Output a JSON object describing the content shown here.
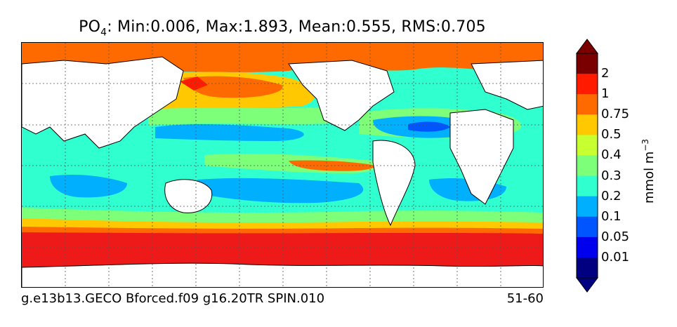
{
  "title": {
    "variable_base": "PO",
    "variable_sub": "4",
    "stats": ": Min:0.006, Max:1.893, Mean:0.555, RMS:0.705"
  },
  "footer": {
    "run_name": "g.e13b13.GECO Bforced.f09 g16.20TR SPIN.010",
    "years": "51-60"
  },
  "colorbar": {
    "unit_base": "mmol m",
    "unit_exp": "−3",
    "levels": [
      "2",
      "1",
      "0.75",
      "0.5",
      "0.4",
      "0.3",
      "0.2",
      "0.1",
      "0.05",
      "0.01"
    ],
    "colors": [
      "#7a0000",
      "#ff1a00",
      "#ff6a00",
      "#ffc800",
      "#c8ff30",
      "#7dff7a",
      "#30ffd0",
      "#00b0ff",
      "#0055ff",
      "#0000ee",
      "#000080"
    ]
  },
  "map": {
    "ocean_colors": {
      "southern_ocean": "#ee1a1a",
      "arctic": "#ff6a00",
      "north_pacific": "#ff6a00",
      "equatorial_band": "#7dff7a",
      "subtropical_gyre": "#30ffd0",
      "oligotrophic_core": "#00b0ff",
      "deep_core": "#0055ff",
      "land": "#ffffff"
    }
  }
}
